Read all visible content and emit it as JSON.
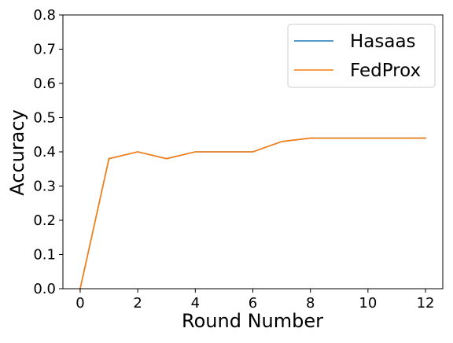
{
  "chart_data": {
    "type": "line",
    "title": "",
    "xlabel": "Round Number",
    "ylabel": "Accuracy",
    "xlim": [
      -0.6,
      12.6
    ],
    "ylim": [
      0.0,
      0.8
    ],
    "x_ticks": [
      0,
      2,
      4,
      6,
      8,
      10,
      12
    ],
    "y_ticks": [
      0.0,
      0.1,
      0.2,
      0.3,
      0.4,
      0.5,
      0.6,
      0.7,
      0.8
    ],
    "x_tick_labels": [
      "0",
      "2",
      "4",
      "6",
      "8",
      "10",
      "12"
    ],
    "y_tick_labels": [
      "0.0",
      "0.1",
      "0.2",
      "0.3",
      "0.4",
      "0.5",
      "0.6",
      "0.7",
      "0.8"
    ],
    "grid": false,
    "legend_position": "top-right",
    "x": [
      0,
      1,
      2,
      3,
      4,
      5,
      6,
      7,
      8,
      9,
      10,
      11,
      12
    ],
    "series": [
      {
        "name": "Hasaas",
        "color": "#1f77b4",
        "values": [
          0.0,
          0.38,
          0.4,
          0.38,
          0.4,
          0.4,
          0.4,
          0.43,
          0.44,
          0.44,
          0.44,
          0.44,
          0.44
        ]
      },
      {
        "name": "FedProx",
        "color": "#ff7f0e",
        "values": [
          0.0,
          0.38,
          0.4,
          0.38,
          0.4,
          0.4,
          0.4,
          0.43,
          0.44,
          0.44,
          0.44,
          0.44,
          0.44
        ]
      }
    ]
  }
}
